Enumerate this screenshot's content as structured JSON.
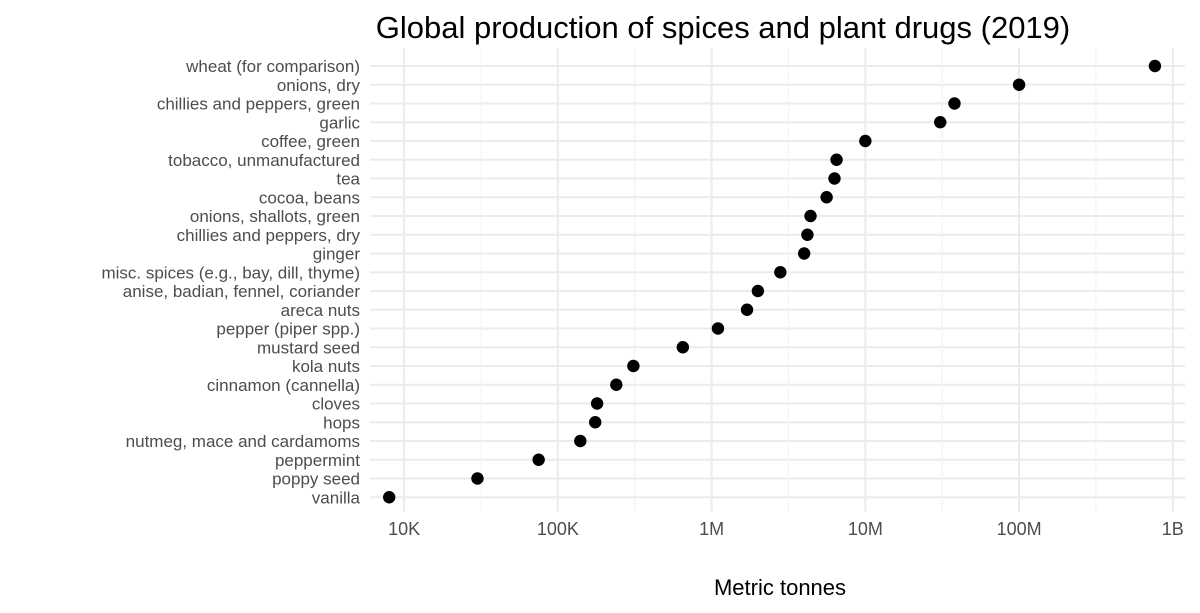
{
  "chart_data": {
    "type": "scatter",
    "title": "Global production of spices and plant drugs (2019)",
    "xlabel": "Metric tonnes",
    "ylabel": "",
    "x_scale": "log10",
    "xlim": [
      6000,
      1200000000
    ],
    "x_ticks": [
      10000,
      100000,
      1000000,
      10000000,
      100000000,
      1000000000
    ],
    "x_tick_labels": [
      "10K",
      "100K",
      "1M",
      "10M",
      "100M",
      "1B"
    ],
    "grid": true,
    "legend": "none",
    "point_color": "#000000",
    "grid_color": "#ebebeb",
    "categories": [
      "wheat (for comparison)",
      "onions, dry",
      "chillies and peppers, green",
      "garlic",
      "coffee, green",
      "tobacco, unmanufactured",
      "tea",
      "cocoa, beans",
      "onions, shallots, green",
      "chillies and peppers, dry",
      "ginger",
      "misc. spices (e.g., bay, dill, thyme)",
      "anise, badian, fennel, coriander",
      "areca nuts",
      "pepper (piper spp.)",
      "mustard seed",
      "kola nuts",
      "cinnamon (cannella)",
      "cloves",
      "hops",
      "nutmeg, mace and cardamoms",
      "peppermint",
      "poppy seed",
      "vanilla"
    ],
    "values": [
      765000000,
      100000000,
      38000000,
      30700000,
      10000000,
      6500000,
      6300000,
      5600000,
      4400000,
      4200000,
      4000000,
      2800000,
      2000000,
      1700000,
      1100000,
      650000,
      310000,
      240000,
      180000,
      175000,
      140000,
      75000,
      30000,
      8000
    ]
  }
}
